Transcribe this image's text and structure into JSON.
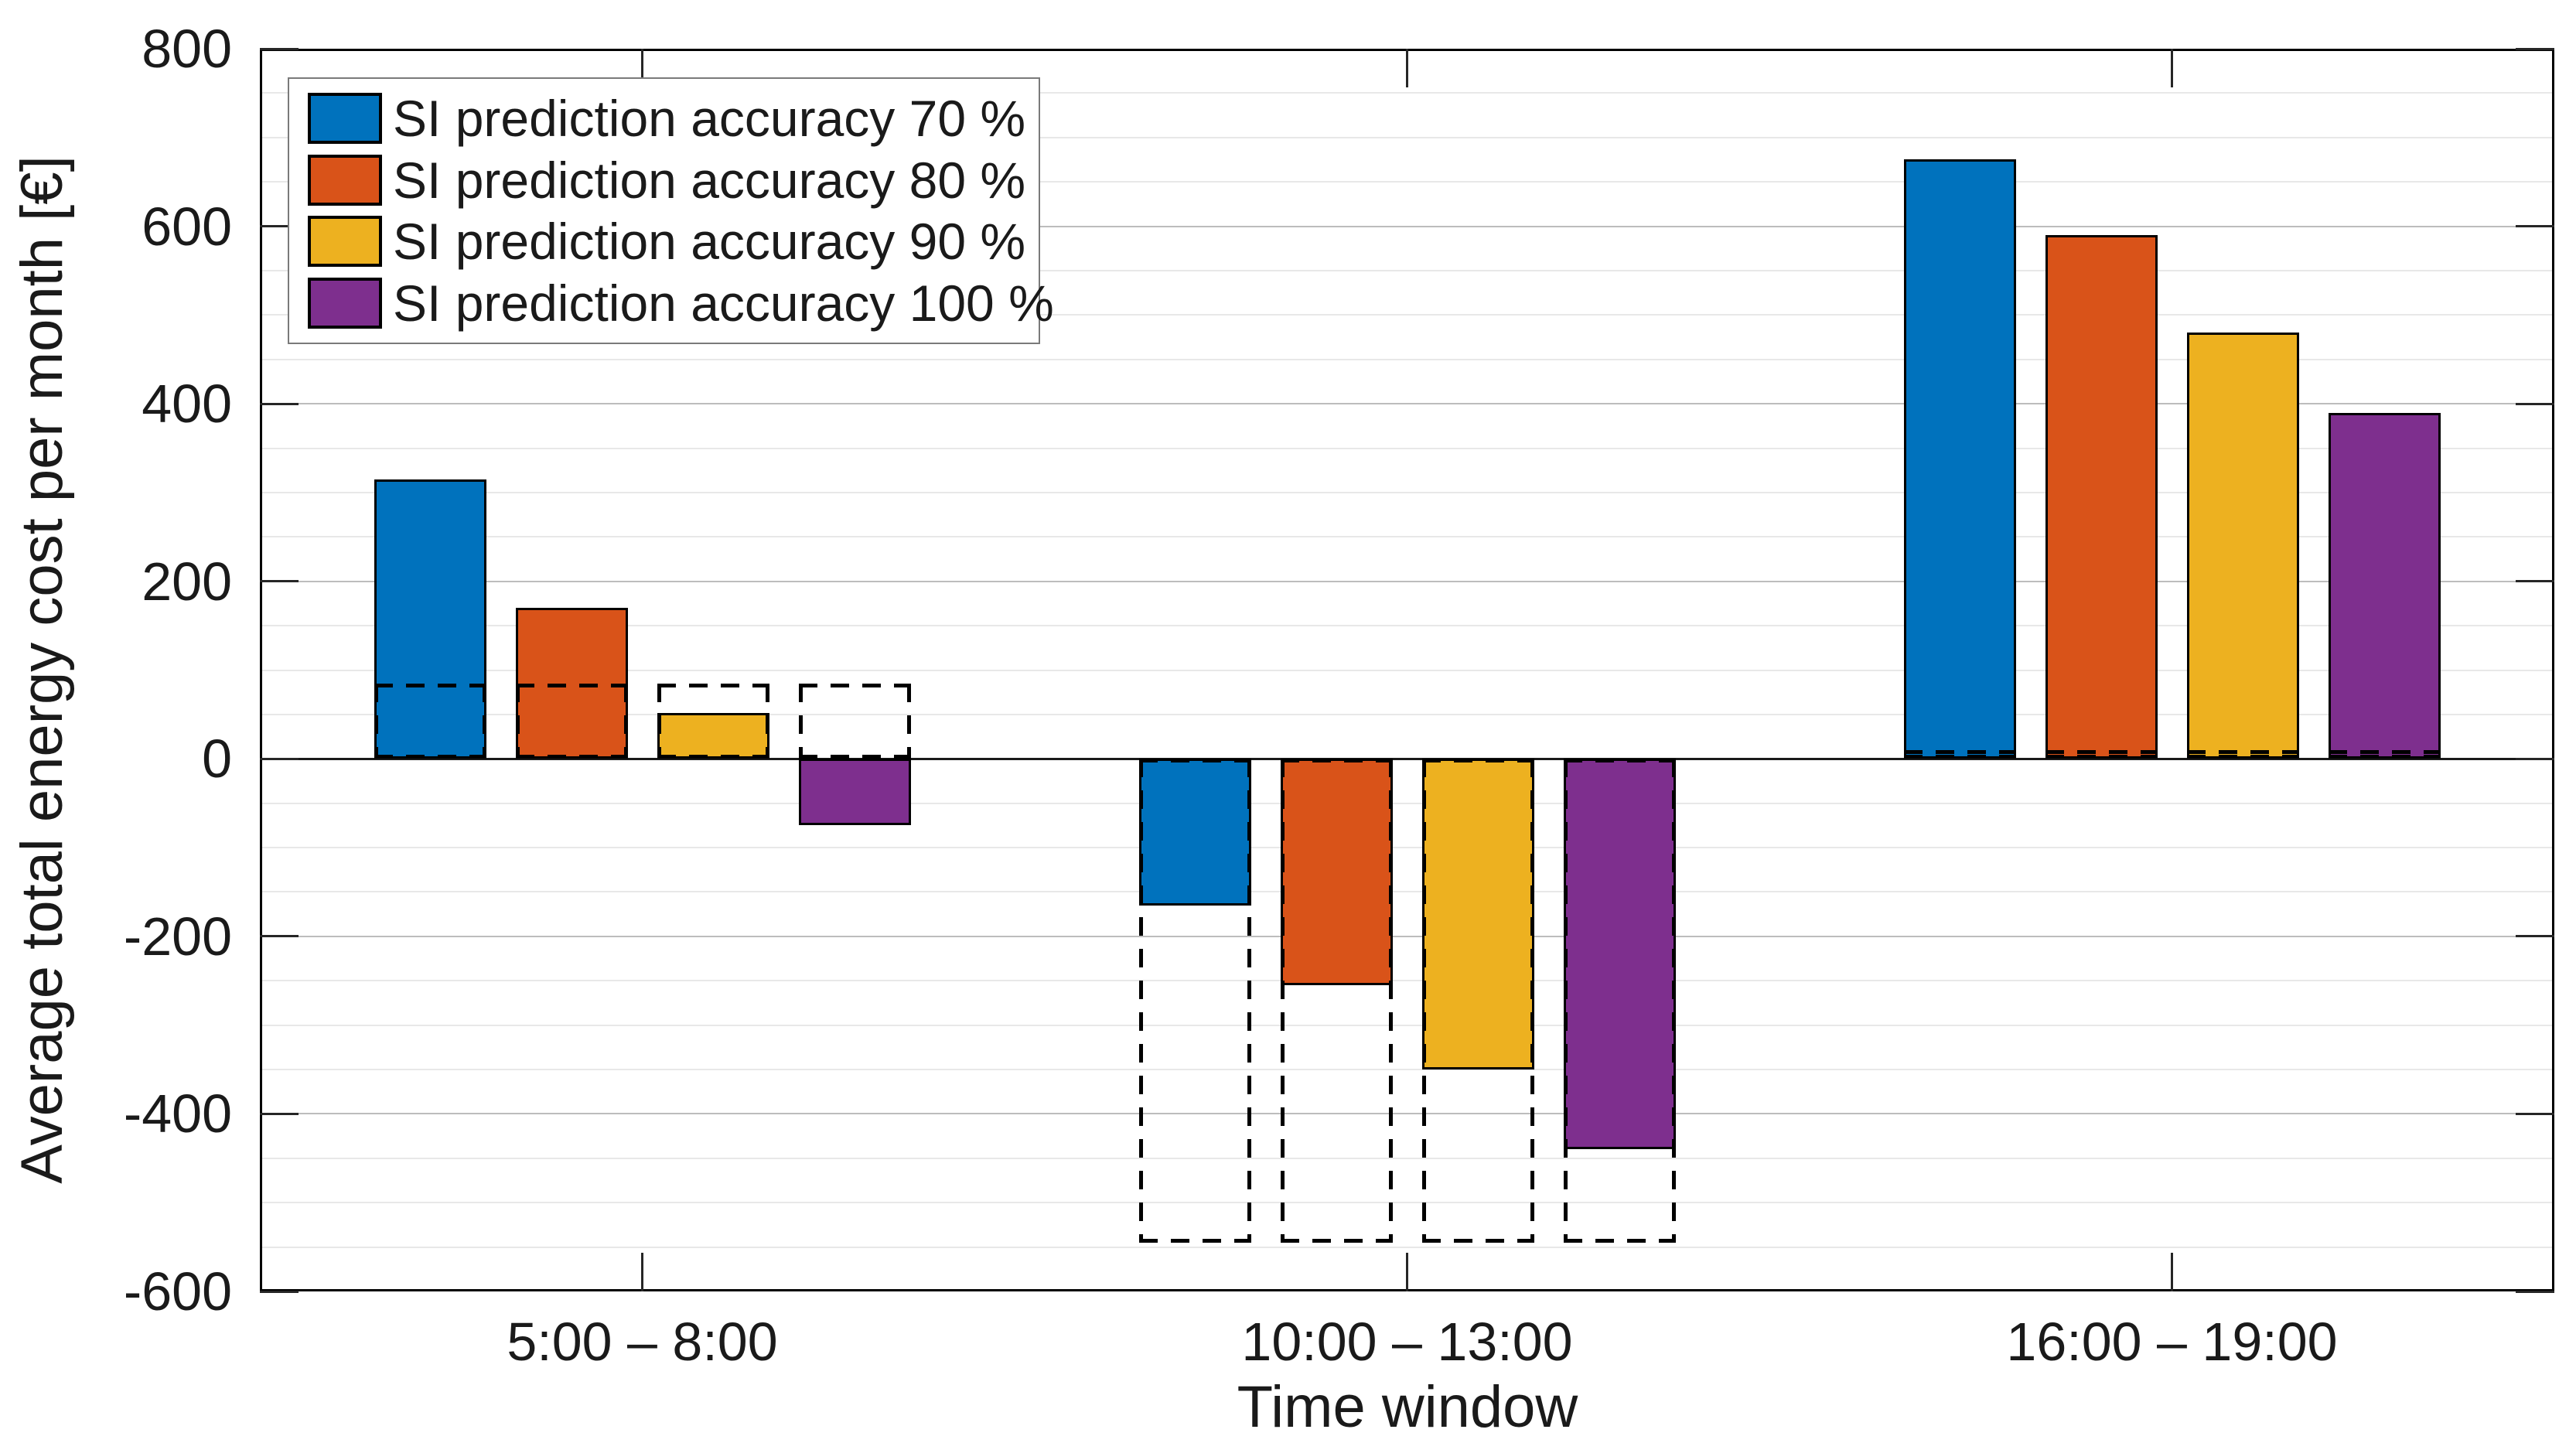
{
  "chart_data": {
    "type": "bar",
    "title": "",
    "xlabel": "Time window",
    "ylabel": "Average total energy cost per month [€]",
    "categories": [
      "5:00 – 8:00",
      "10:00 – 13:00",
      "16:00 – 19:00"
    ],
    "series": [
      {
        "name": "SI prediction accuracy 70 %",
        "color": "#0072BD",
        "values": [
          315,
          -165,
          675
        ]
      },
      {
        "name": "SI prediction accuracy 80 %",
        "color": "#D95319",
        "values": [
          170,
          -255,
          590
        ]
      },
      {
        "name": "SI prediction accuracy 90 %",
        "color": "#EDB120",
        "values": [
          52,
          -350,
          480
        ]
      },
      {
        "name": "SI prediction accuracy 100 %",
        "color": "#7E2F8E",
        "values": [
          -75,
          -440,
          390
        ]
      }
    ],
    "reference_dashed_values_by_category": [
      85,
      -545,
      10
    ],
    "ylim": [
      -600,
      800
    ],
    "yticks": [
      800,
      600,
      400,
      200,
      0,
      -200,
      -400,
      -600
    ],
    "ytick_labels": [
      "800",
      "600",
      "400",
      "200",
      "0",
      "-200",
      "-400",
      "-600"
    ],
    "minor_grid_step": 50,
    "major_grid_step": 200,
    "grid": true,
    "legend_position": "top-left-inside",
    "style": {
      "background": "#ffffff",
      "text": "#1a1a1a",
      "spine": "#000000",
      "zero_line": "#1a1a1a",
      "grid_minor": "#e8e8e8",
      "grid_major": "#bdbdbd",
      "legend_border": "#7a7a7a",
      "bar_border": "#000000",
      "reference_dash": "#000000"
    }
  }
}
